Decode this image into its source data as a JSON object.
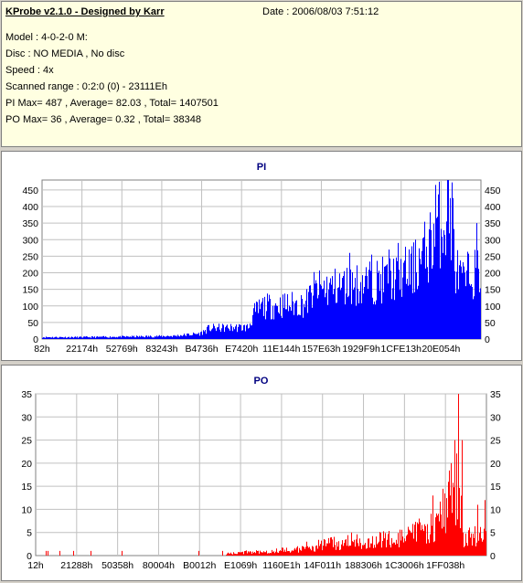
{
  "header": {
    "title": "KProbe v2.1.0 - Designed by Karr",
    "date": "Date : 2006/08/03 7:51:12",
    "lines": [
      "Model : 4-0-2-0 M:",
      "Disc : NO MEDIA , No disc",
      "Speed : 4x",
      "Scanned range : 0:2:0 (0) - 23111Eh",
      "PI Max= 487 , Average= 82.03 , Total= 1407501",
      "PO Max= 36 , Average= 0.32 , Total= 38348"
    ]
  },
  "colors": {
    "pi": "#0000ff",
    "po": "#ff0000",
    "grid": "#c0c0c0"
  },
  "chart_data": [
    {
      "type": "bar",
      "title": "PI",
      "ylim": [
        0,
        480
      ],
      "yticks": [
        0,
        50,
        100,
        150,
        200,
        250,
        300,
        350,
        400,
        450
      ],
      "xtick_labels": [
        "82h",
        "22174h",
        "52769h",
        "83243h",
        "B4736h",
        "E7420h",
        "11E144h",
        "157E63h",
        "1929F9h",
        "1CFE13h",
        "20E054h"
      ],
      "grid": true,
      "color": "#0000ff",
      "envelope": [
        [
          0.0,
          6
        ],
        [
          0.08,
          6
        ],
        [
          0.15,
          7
        ],
        [
          0.22,
          8
        ],
        [
          0.3,
          10
        ],
        [
          0.36,
          18
        ],
        [
          0.38,
          35
        ],
        [
          0.47,
          38
        ],
        [
          0.48,
          80
        ],
        [
          0.5,
          105
        ],
        [
          0.55,
          110
        ],
        [
          0.6,
          115
        ],
        [
          0.62,
          160
        ],
        [
          0.7,
          175
        ],
        [
          0.75,
          185
        ],
        [
          0.8,
          200
        ],
        [
          0.85,
          230
        ],
        [
          0.88,
          300
        ],
        [
          0.91,
          390
        ],
        [
          0.935,
          395
        ],
        [
          0.94,
          230
        ],
        [
          0.96,
          180
        ],
        [
          0.97,
          210
        ],
        [
          1.0,
          220
        ]
      ],
      "spikes": [
        [
          0.895,
          465
        ],
        [
          0.925,
          480
        ],
        [
          0.99,
          350
        ],
        [
          0.7,
          260
        ],
        [
          0.75,
          255
        ],
        [
          0.79,
          270
        ],
        [
          0.81,
          290
        ],
        [
          0.845,
          285
        ],
        [
          0.85,
          300
        ]
      ]
    },
    {
      "type": "bar",
      "title": "PO",
      "ylim": [
        0,
        35
      ],
      "yticks": [
        0,
        5,
        10,
        15,
        20,
        25,
        30,
        35
      ],
      "xtick_labels": [
        "12h",
        "21288h",
        "50358h",
        "80004h",
        "B0012h",
        "E1069h",
        "1160E1h",
        "14F011h",
        "188306h",
        "1C3006h",
        "1FF038h"
      ],
      "grid": true,
      "color": "#ff0000",
      "envelope": [
        [
          0.0,
          0.1
        ],
        [
          0.4,
          0.2
        ],
        [
          0.47,
          0.8
        ],
        [
          0.6,
          1.5
        ],
        [
          0.63,
          2.5
        ],
        [
          0.72,
          3.2
        ],
        [
          0.82,
          4.0
        ],
        [
          0.88,
          6.5
        ],
        [
          0.91,
          11
        ],
        [
          0.94,
          17
        ],
        [
          0.945,
          4
        ],
        [
          1.0,
          4.5
        ]
      ],
      "spikes": [
        [
          0.937,
          36
        ],
        [
          0.93,
          25
        ],
        [
          0.945,
          25
        ],
        [
          0.88,
          13
        ],
        [
          0.92,
          20
        ],
        [
          0.6,
          3
        ],
        [
          0.7,
          5
        ],
        [
          0.77,
          5
        ],
        [
          0.85,
          8
        ],
        [
          0.995,
          12
        ],
        [
          0.98,
          11
        ]
      ]
    }
  ]
}
